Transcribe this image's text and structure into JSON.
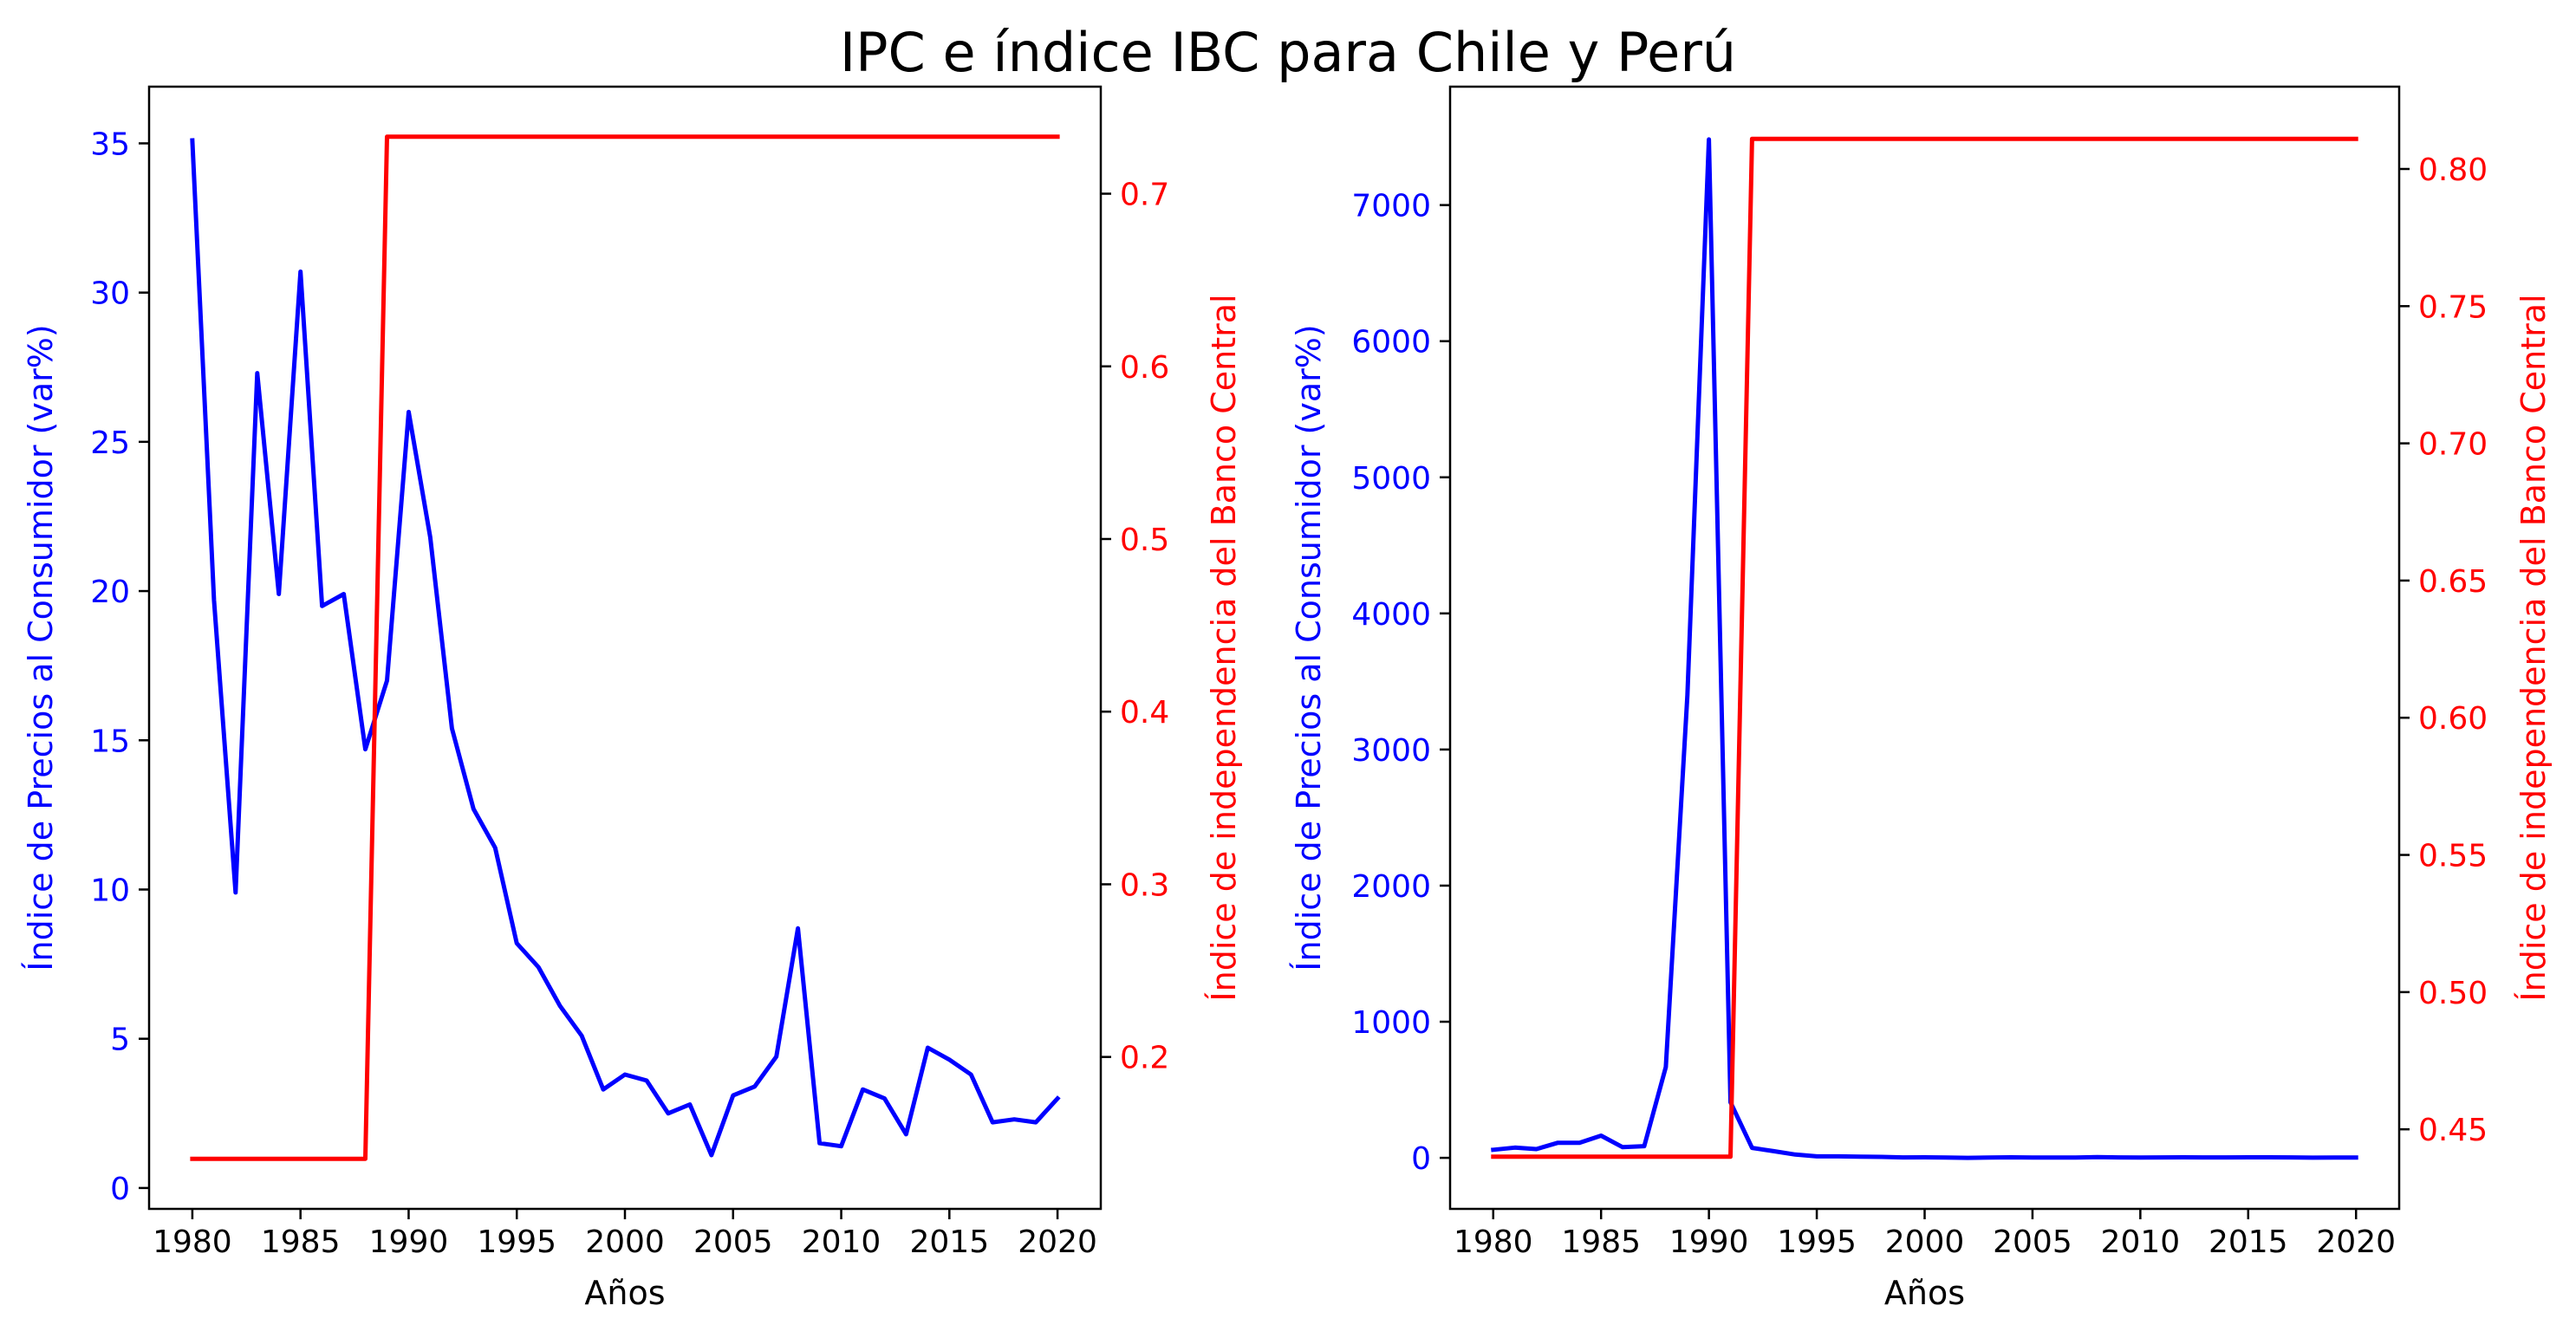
{
  "figure": {
    "title": "IPC e índice IBC para Chile y Perú"
  },
  "chart_data": [
    {
      "type": "line",
      "panel": "left",
      "xlabel": "Años",
      "ylabel_left": "Índice de Precios al Consumidor (var%)",
      "ylabel_right": "Índice de independencia del Banco Central",
      "xlim": [
        1978,
        2022
      ],
      "ylim_left": [
        -0.7,
        36.9
      ],
      "ylim_right": [
        0.112,
        0.762
      ],
      "xticks": [
        1980,
        1985,
        1990,
        1995,
        2000,
        2005,
        2010,
        2015,
        2020
      ],
      "yticks_left": [
        0,
        5,
        10,
        15,
        20,
        25,
        30,
        35
      ],
      "yticks_right": [
        0.2,
        0.3,
        0.4,
        0.5,
        0.6,
        0.7
      ],
      "grid": false,
      "colors": {
        "left": "#0000ff",
        "right": "#ff0000"
      },
      "series": [
        {
          "axis": "left",
          "x": [
            1980,
            1981,
            1982,
            1983,
            1984,
            1985,
            1986,
            1987,
            1988,
            1989,
            1990,
            1991,
            1992,
            1993,
            1994,
            1995,
            1996,
            1997,
            1998,
            1999,
            2000,
            2001,
            2002,
            2003,
            2004,
            2005,
            2006,
            2007,
            2008,
            2009,
            2010,
            2011,
            2012,
            2013,
            2014,
            2015,
            2016,
            2017,
            2018,
            2019,
            2020
          ],
          "values": [
            35.1,
            19.7,
            9.9,
            27.3,
            19.9,
            30.7,
            19.5,
            19.9,
            14.7,
            17.0,
            26.0,
            21.8,
            15.4,
            12.7,
            11.4,
            8.2,
            7.4,
            6.1,
            5.1,
            3.3,
            3.8,
            3.6,
            2.5,
            2.8,
            1.1,
            3.1,
            3.4,
            4.4,
            8.7,
            1.5,
            1.4,
            3.3,
            3.0,
            1.8,
            4.7,
            4.3,
            3.8,
            2.2,
            2.3,
            2.2,
            3.0
          ]
        },
        {
          "axis": "right",
          "x": [
            1980,
            1981,
            1982,
            1983,
            1984,
            1985,
            1986,
            1987,
            1988,
            1989,
            1990,
            1991,
            1992,
            1993,
            1994,
            1995,
            1996,
            1997,
            1998,
            1999,
            2000,
            2001,
            2002,
            2003,
            2004,
            2005,
            2006,
            2007,
            2008,
            2009,
            2010,
            2011,
            2012,
            2013,
            2014,
            2015,
            2016,
            2017,
            2018,
            2019,
            2020
          ],
          "values": [
            0.141,
            0.141,
            0.141,
            0.141,
            0.141,
            0.141,
            0.141,
            0.141,
            0.141,
            0.733,
            0.733,
            0.733,
            0.733,
            0.733,
            0.733,
            0.733,
            0.733,
            0.733,
            0.733,
            0.733,
            0.733,
            0.733,
            0.733,
            0.733,
            0.733,
            0.733,
            0.733,
            0.733,
            0.733,
            0.733,
            0.733,
            0.733,
            0.733,
            0.733,
            0.733,
            0.733,
            0.733,
            0.733,
            0.733,
            0.733,
            0.733
          ]
        }
      ]
    },
    {
      "type": "line",
      "panel": "right",
      "xlabel": "Años",
      "ylabel_left": "Índice de Precios al Consumidor (var%)",
      "ylabel_right": "Índice de independencia del Banco Central",
      "xlim": [
        1978,
        2022
      ],
      "ylim_left": [
        -375,
        7870
      ],
      "ylim_right": [
        0.421,
        0.83
      ],
      "xticks": [
        1980,
        1985,
        1990,
        1995,
        2000,
        2005,
        2010,
        2015,
        2020
      ],
      "yticks_left": [
        0,
        1000,
        2000,
        3000,
        4000,
        5000,
        6000,
        7000
      ],
      "yticks_right": [
        0.45,
        0.5,
        0.55,
        0.6,
        0.65,
        0.7,
        0.75,
        0.8
      ],
      "grid": false,
      "colors": {
        "left": "#0000ff",
        "right": "#ff0000"
      },
      "series": [
        {
          "axis": "left",
          "x": [
            1980,
            1981,
            1982,
            1983,
            1984,
            1985,
            1986,
            1987,
            1988,
            1989,
            1990,
            1991,
            1992,
            1993,
            1994,
            1995,
            1996,
            1997,
            1998,
            1999,
            2000,
            2001,
            2002,
            2003,
            2004,
            2005,
            2006,
            2007,
            2008,
            2009,
            2010,
            2011,
            2012,
            2013,
            2014,
            2015,
            2016,
            2017,
            2018,
            2019,
            2020
          ],
          "values": [
            59,
            75,
            64,
            111,
            110,
            163,
            78,
            86,
            667,
            3399,
            7482,
            409,
            73,
            49,
            24,
            11,
            11,
            9,
            7,
            3,
            4,
            2,
            0,
            2,
            4,
            2,
            2,
            2,
            6,
            3,
            2,
            3,
            4,
            3,
            3,
            4,
            4,
            3,
            1,
            2,
            2
          ]
        },
        {
          "axis": "right",
          "x": [
            1980,
            1981,
            1982,
            1983,
            1984,
            1985,
            1986,
            1987,
            1988,
            1989,
            1990,
            1991,
            1992,
            1993,
            1994,
            1995,
            1996,
            1997,
            1998,
            1999,
            2000,
            2001,
            2002,
            2003,
            2004,
            2005,
            2006,
            2007,
            2008,
            2009,
            2010,
            2011,
            2012,
            2013,
            2014,
            2015,
            2016,
            2017,
            2018,
            2019,
            2020
          ],
          "values": [
            0.44,
            0.44,
            0.44,
            0.44,
            0.44,
            0.44,
            0.44,
            0.44,
            0.44,
            0.44,
            0.44,
            0.44,
            0.811,
            0.811,
            0.811,
            0.811,
            0.811,
            0.811,
            0.811,
            0.811,
            0.811,
            0.811,
            0.811,
            0.811,
            0.811,
            0.811,
            0.811,
            0.811,
            0.811,
            0.811,
            0.811,
            0.811,
            0.811,
            0.811,
            0.811,
            0.811,
            0.811,
            0.811,
            0.811,
            0.811,
            0.811
          ]
        }
      ]
    }
  ]
}
